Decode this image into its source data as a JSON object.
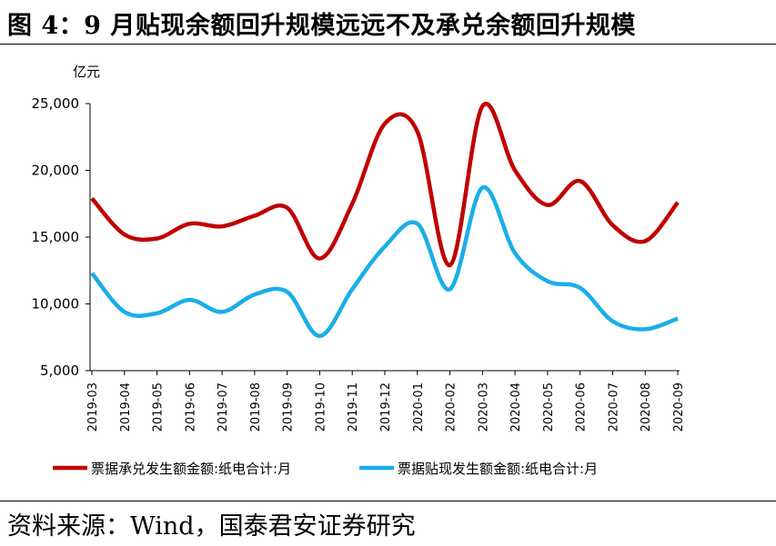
{
  "header": {
    "title": "图 4：9 月贴现余额回升规模远远不及承兑余额回升规模"
  },
  "footer": {
    "source": "资料来源：Wind，国泰君安证券研究"
  },
  "chart_data": {
    "type": "line",
    "title": "9 月贴现余额回升规模远远不及承兑余额回升规模",
    "unit_label": "亿元",
    "xlabel": "",
    "ylabel": "亿元",
    "ylim": [
      5000,
      25000
    ],
    "yticks": [
      5000,
      10000,
      15000,
      20000,
      25000
    ],
    "ytick_labels": [
      "5,000",
      "10,000",
      "15,000",
      "20,000",
      "25,000"
    ],
    "grid": false,
    "legend_position": "bottom",
    "categories": [
      "2019-03",
      "2019-04",
      "2019-05",
      "2019-06",
      "2019-07",
      "2019-08",
      "2019-09",
      "2019-10",
      "2019-11",
      "2019-12",
      "2020-01",
      "2020-02",
      "2020-03",
      "2020-04",
      "2020-05",
      "2020-06",
      "2020-07",
      "2020-08",
      "2020-09"
    ],
    "series": [
      {
        "name": "票据承兑发生额金额:纸电合计:月",
        "color": "#C00000",
        "values": [
          17900,
          15200,
          14900,
          16000,
          15800,
          16600,
          17200,
          13400,
          17500,
          23500,
          22900,
          12900,
          24800,
          20000,
          17400,
          19200,
          15900,
          14700,
          17600
        ]
      },
      {
        "name": "票据贴现发生额金额:纸电合计:月",
        "color": "#19AEE8",
        "values": [
          12300,
          9400,
          9300,
          10300,
          9400,
          10700,
          10900,
          7600,
          11100,
          14300,
          16000,
          11100,
          18700,
          13800,
          11700,
          11200,
          8700,
          8100,
          8900
        ]
      }
    ]
  }
}
